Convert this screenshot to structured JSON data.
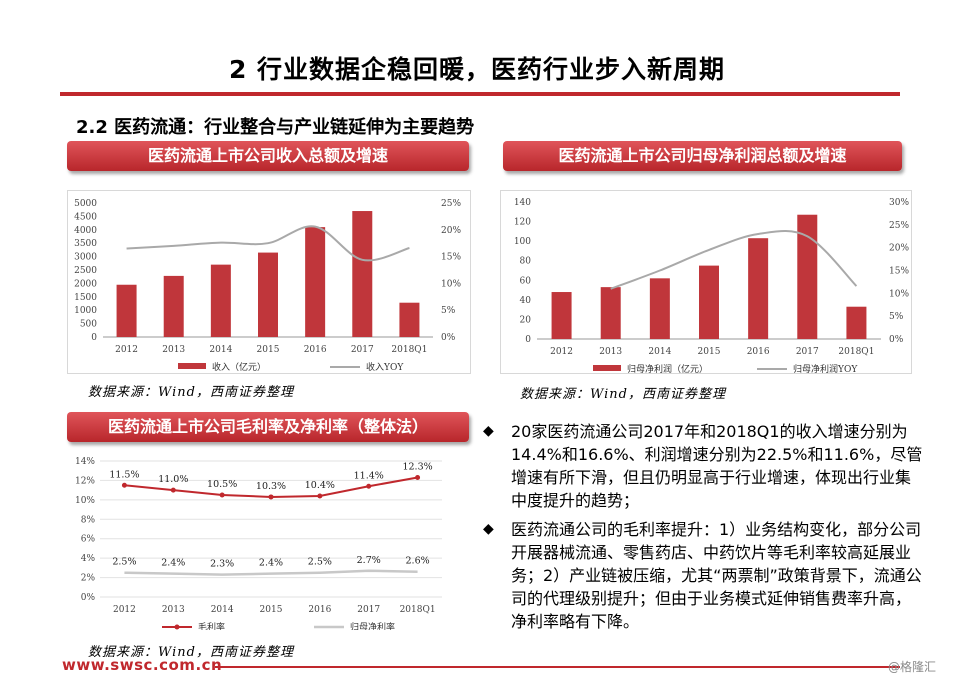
{
  "page": {
    "title": "2 行业数据企稳回暖，医药行业步入新周期",
    "section": "2.2 医药流通：行业整合与产业链延伸为主要趋势",
    "footer_url": "www.swsc.com.cn",
    "watermark": "@格隆汇"
  },
  "panels": {
    "revenue": {
      "title": "医药流通上市公司收入总额及增速",
      "source": "数据来源：Wind，西南证券整理"
    },
    "profit": {
      "title": "医药流通上市公司归母净利润总额及增速",
      "source": "数据来源：Wind，西南证券整理"
    },
    "margin": {
      "title": "医药流通上市公司毛利率及净利率（整体法）",
      "source": "数据来源：Wind，西南证券整理"
    }
  },
  "bullets": [
    "20家医药流通公司2017年和2018Q1的收入增速分别为14.4%和16.6%、利润增速分别为22.5%和11.6%，尽管增速有所下滑，但且仍明显高于行业增速，体现出行业集中度提升的趋势；",
    "医药流通公司的毛利率提升：1）业务结构变化，部分公司开展器械流通、零售药店、中药饮片等毛利率较高延展业务；2）产业链被压缩，尤其“两票制”政策背景下，流通公司的代理级别提升；但由于业务模式延伸销售费率升高，净利率略有下降。"
  ],
  "colors": {
    "accent": "#c0282d",
    "bar": "#c0363b",
    "yoy_line": "#a9a9a9",
    "net_line": "#c8c8c8"
  },
  "chart_data": [
    {
      "type": "bar",
      "id": "revenue",
      "categories": [
        "2012",
        "2013",
        "2014",
        "2015",
        "2016",
        "2017",
        "2018Q1"
      ],
      "series": [
        {
          "name": "收入（亿元）",
          "axis": "left",
          "values": [
            1950,
            2280,
            2700,
            3150,
            4100,
            4700,
            1280
          ]
        },
        {
          "name": "收入YOY",
          "type": "line",
          "axis": "right",
          "values": [
            16.5,
            17.0,
            17.6,
            17.5,
            20.6,
            14.4,
            16.6
          ]
        }
      ],
      "ylim_left": [
        0,
        5000
      ],
      "yticks_left": [
        "0",
        "500",
        "1000",
        "1500",
        "2000",
        "2500",
        "3000",
        "3500",
        "4000",
        "4500",
        "5000"
      ],
      "ylim_right": [
        0,
        25
      ],
      "yticks_right": [
        "0%",
        "5%",
        "10%",
        "15%",
        "20%",
        "25%"
      ],
      "legend": "bottom"
    },
    {
      "type": "bar",
      "id": "profit",
      "categories": [
        "2012",
        "2013",
        "2014",
        "2015",
        "2016",
        "2017",
        "2018Q1"
      ],
      "series": [
        {
          "name": "归母净利润（亿元）",
          "axis": "left",
          "values": [
            48,
            53,
            62,
            75,
            103,
            127,
            33
          ]
        },
        {
          "name": "归母净利润YOY",
          "type": "line",
          "axis": "right",
          "values": [
            null,
            11.0,
            15.0,
            19.5,
            23.0,
            22.5,
            11.6
          ]
        }
      ],
      "ylim_left": [
        0,
        140
      ],
      "yticks_left": [
        "0",
        "20",
        "40",
        "60",
        "80",
        "100",
        "120",
        "140"
      ],
      "ylim_right": [
        0,
        30
      ],
      "yticks_right": [
        "0%",
        "5%",
        "10%",
        "15%",
        "20%",
        "25%",
        "30%"
      ],
      "legend": "bottom"
    },
    {
      "type": "line",
      "id": "margin",
      "categories": [
        "2012",
        "2013",
        "2014",
        "2015",
        "2016",
        "2017",
        "2018Q1"
      ],
      "series": [
        {
          "name": "毛利率",
          "values": [
            11.5,
            11.0,
            10.5,
            10.3,
            10.4,
            11.4,
            12.3
          ],
          "labels": [
            "11.5%",
            "11.0%",
            "10.5%",
            "10.3%",
            "10.4%",
            "11.4%",
            "12.3%"
          ]
        },
        {
          "name": "归母净利率",
          "values": [
            2.5,
            2.4,
            2.3,
            2.4,
            2.5,
            2.7,
            2.6
          ],
          "labels": [
            "2.5%",
            "2.4%",
            "2.3%",
            "2.4%",
            "2.5%",
            "2.7%",
            "2.6%"
          ]
        }
      ],
      "ylim": [
        0,
        14
      ],
      "yticks": [
        "0%",
        "2%",
        "4%",
        "6%",
        "8%",
        "10%",
        "12%",
        "14%"
      ],
      "legend": "bottom"
    }
  ]
}
